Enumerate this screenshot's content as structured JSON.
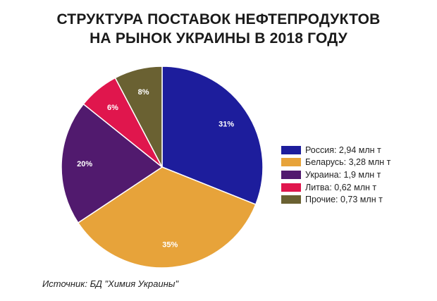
{
  "title_line1": "СТРУКТУРА ПОСТАВОК НЕФТЕПРОДУКТОВ",
  "title_line2": "НА РЫНОК УКРАИНЫ В 2018 ГОДУ",
  "source": "Источник: БД \"Химия Украины\"",
  "chart_data": {
    "type": "pie",
    "title": "СТРУКТУРА ПОСТАВОК НЕФТЕПРОДУКТОВ НА РЫНОК УКРАИНЫ В 2018 ГОДУ",
    "legend_position": "right",
    "slices": [
      {
        "legend": "Россия: 2,94 млн т",
        "value": 2.94,
        "percent_label": "31%",
        "color": "#1d1d9c"
      },
      {
        "legend": "Беларусь: 3,28 млн т",
        "value": 3.28,
        "percent_label": "35%",
        "color": "#e7a33a"
      },
      {
        "legend": "Украина: 1,9 млн т",
        "value": 1.9,
        "percent_label": "20%",
        "color": "#511a6e"
      },
      {
        "legend": "Литва: 0,62 млн т",
        "value": 0.62,
        "percent_label": "6%",
        "color": "#e0164d"
      },
      {
        "legend": "Прочие: 0,73 млн т",
        "value": 0.73,
        "percent_label": "8%",
        "color": "#6a6132"
      }
    ]
  }
}
